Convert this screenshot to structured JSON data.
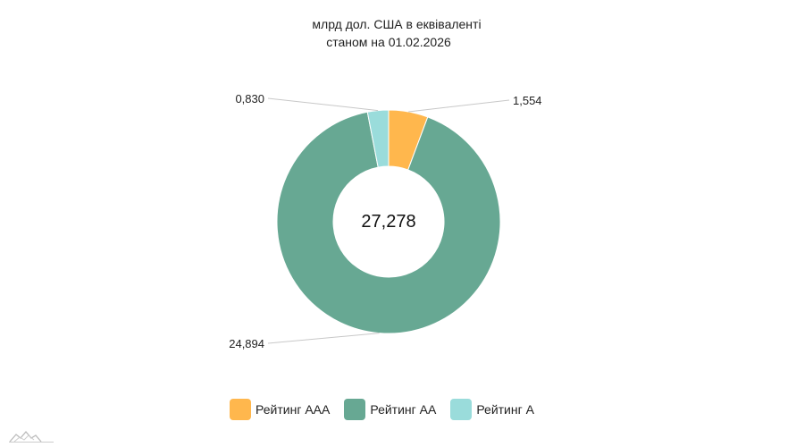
{
  "chart_data": {
    "type": "pie",
    "variant": "donut",
    "subtitle": [
      "млрд дол. США в еквіваленті",
      "станом на 01.02.2026"
    ],
    "total_label": "27,278",
    "categories": [
      "Рейтинг ААА",
      "Рейтинг АА",
      "Рейтинг А"
    ],
    "values": [
      1.554,
      24.894,
      0.83
    ],
    "value_labels": [
      "1,554",
      "24,894",
      "0,830"
    ],
    "colors": [
      "#FFB74D",
      "#67A893",
      "#9ADCDB"
    ],
    "legend_position": "bottom"
  }
}
